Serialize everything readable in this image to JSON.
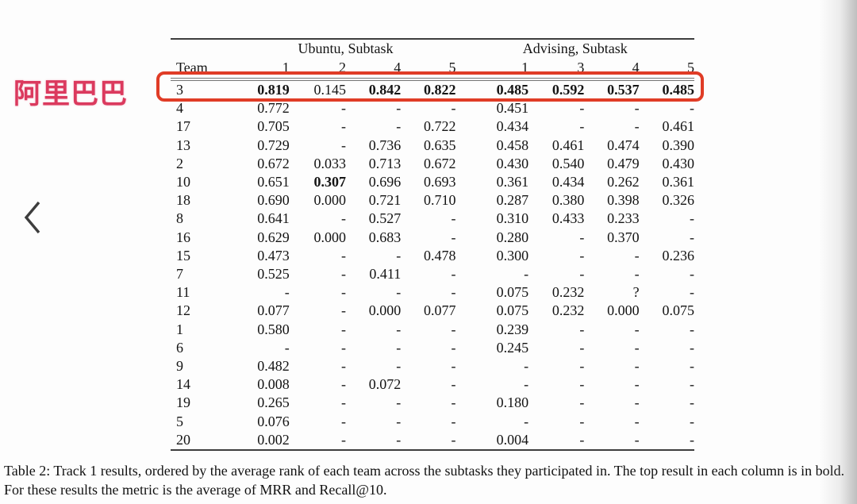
{
  "annotations": {
    "label": "阿里巴巴",
    "label_color": "#db3a5e",
    "box_color": "#e03c26",
    "highlighted_team": "3"
  },
  "nav": {
    "prev_icon": "chevron-left"
  },
  "table": {
    "group_headers": [
      {
        "label": "Ubuntu, Subtask",
        "span": 4
      },
      {
        "label": "Advising, Subtask",
        "span": 4
      }
    ],
    "col_headers": [
      "Team",
      "1",
      "2",
      "4",
      "5",
      "1",
      "3",
      "4",
      "5"
    ],
    "rows": [
      {
        "team": "3",
        "cells": [
          "0.819",
          "0.145",
          "0.842",
          "0.822",
          "0.485",
          "0.592",
          "0.537",
          "0.485"
        ],
        "bold": [
          true,
          false,
          true,
          true,
          true,
          true,
          true,
          true
        ],
        "highlight": true
      },
      {
        "team": "4",
        "cells": [
          "0.772",
          "-",
          "-",
          "-",
          "0.451",
          "-",
          "-",
          "-"
        ]
      },
      {
        "team": "17",
        "cells": [
          "0.705",
          "-",
          "-",
          "0.722",
          "0.434",
          "-",
          "-",
          "0.461"
        ]
      },
      {
        "team": "13",
        "cells": [
          "0.729",
          "-",
          "0.736",
          "0.635",
          "0.458",
          "0.461",
          "0.474",
          "0.390"
        ]
      },
      {
        "team": "2",
        "cells": [
          "0.672",
          "0.033",
          "0.713",
          "0.672",
          "0.430",
          "0.540",
          "0.479",
          "0.430"
        ]
      },
      {
        "team": "10",
        "cells": [
          "0.651",
          "0.307",
          "0.696",
          "0.693",
          "0.361",
          "0.434",
          "0.262",
          "0.361"
        ],
        "bold": [
          false,
          true,
          false,
          false,
          false,
          false,
          false,
          false
        ]
      },
      {
        "team": "18",
        "cells": [
          "0.690",
          "0.000",
          "0.721",
          "0.710",
          "0.287",
          "0.380",
          "0.398",
          "0.326"
        ]
      },
      {
        "team": "8",
        "cells": [
          "0.641",
          "-",
          "0.527",
          "-",
          "0.310",
          "0.433",
          "0.233",
          "-"
        ]
      },
      {
        "team": "16",
        "cells": [
          "0.629",
          "0.000",
          "0.683",
          "-",
          "0.280",
          "-",
          "0.370",
          "-"
        ]
      },
      {
        "team": "15",
        "cells": [
          "0.473",
          "-",
          "-",
          "0.478",
          "0.300",
          "-",
          "-",
          "0.236"
        ]
      },
      {
        "team": "7",
        "cells": [
          "0.525",
          "-",
          "0.411",
          "-",
          "-",
          "-",
          "-",
          "-"
        ]
      },
      {
        "team": "11",
        "cells": [
          "-",
          "-",
          "-",
          "-",
          "0.075",
          "0.232",
          "?",
          "-"
        ]
      },
      {
        "team": "12",
        "cells": [
          "0.077",
          "-",
          "0.000",
          "0.077",
          "0.075",
          "0.232",
          "0.000",
          "0.075"
        ]
      },
      {
        "team": "1",
        "cells": [
          "0.580",
          "-",
          "-",
          "-",
          "0.239",
          "-",
          "-",
          "-"
        ]
      },
      {
        "team": "6",
        "cells": [
          "-",
          "-",
          "-",
          "-",
          "0.245",
          "-",
          "-",
          "-"
        ]
      },
      {
        "team": "9",
        "cells": [
          "0.482",
          "-",
          "-",
          "-",
          "-",
          "-",
          "-",
          "-"
        ]
      },
      {
        "team": "14",
        "cells": [
          "0.008",
          "-",
          "0.072",
          "-",
          "-",
          "-",
          "-",
          "-"
        ]
      },
      {
        "team": "19",
        "cells": [
          "0.265",
          "-",
          "-",
          "-",
          "0.180",
          "-",
          "-",
          "-"
        ]
      },
      {
        "team": "5",
        "cells": [
          "0.076",
          "-",
          "-",
          "-",
          "-",
          "-",
          "-",
          "-"
        ]
      },
      {
        "team": "20",
        "cells": [
          "0.002",
          "-",
          "-",
          "-",
          "0.004",
          "-",
          "-",
          "-"
        ]
      }
    ]
  },
  "caption": "Table 2:  Track 1 results, ordered by the average rank of each team across the subtasks they participated in. The top result in each column is in bold. For these results the metric is the average of MRR and Recall@10."
}
